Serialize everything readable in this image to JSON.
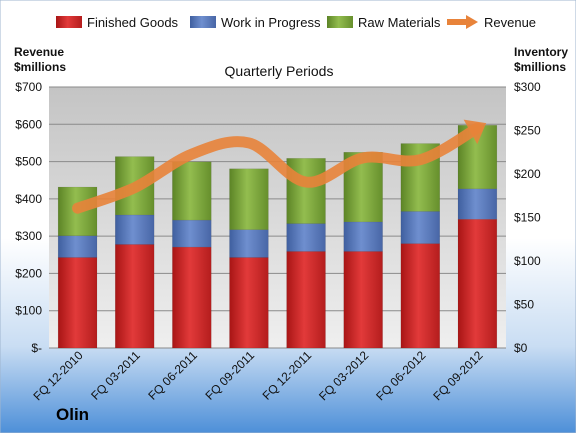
{
  "company": "Olin",
  "colors": {
    "finished": "#d42a2a",
    "wip": "#5677b8",
    "raw": "#79a33a",
    "revenue": "#e8833a"
  },
  "legend": {
    "finished": "Finished Goods",
    "wip": "Work in Progress",
    "raw": "Raw Materials",
    "revenue": "Revenue"
  },
  "chart_data": {
    "type": "bar",
    "stacked": true,
    "title": "Quarterly Periods",
    "left_axis": {
      "label_line1": "Revenue",
      "label_line2": "$millions",
      "ylim": [
        0,
        700
      ],
      "ticks": [
        "$-",
        "$100",
        "$200",
        "$300",
        "$400",
        "$500",
        "$600",
        "$700"
      ]
    },
    "right_axis": {
      "label_line1": "Inventory",
      "label_line2": "$millions",
      "ylim": [
        0,
        300
      ],
      "ticks": [
        "$0",
        "$50",
        "$100",
        "$150",
        "$200",
        "$250",
        "$300"
      ]
    },
    "categories": [
      "FQ 12-2010",
      "FQ 03-2011",
      "FQ 06-2011",
      "FQ 09-2011",
      "FQ 12-2011",
      "FQ 03-2012",
      "FQ 06-2012",
      "FQ 09-2012"
    ],
    "series": [
      {
        "name": "Finished Goods",
        "axis": "right",
        "values": [
          104,
          119,
          116,
          104,
          111,
          111,
          120,
          148
        ]
      },
      {
        "name": "Work in Progress",
        "axis": "right",
        "values": [
          25,
          34,
          31,
          32,
          32,
          34,
          37,
          35
        ]
      },
      {
        "name": "Raw Materials",
        "axis": "right",
        "values": [
          56,
          67,
          67,
          70,
          75,
          80,
          78,
          73
        ]
      },
      {
        "name": "Revenue",
        "axis": "left",
        "type": "line",
        "values": [
          375,
          430,
          520,
          550,
          445,
          510,
          505,
          590
        ]
      }
    ],
    "grid": true,
    "legend_position": "top"
  }
}
